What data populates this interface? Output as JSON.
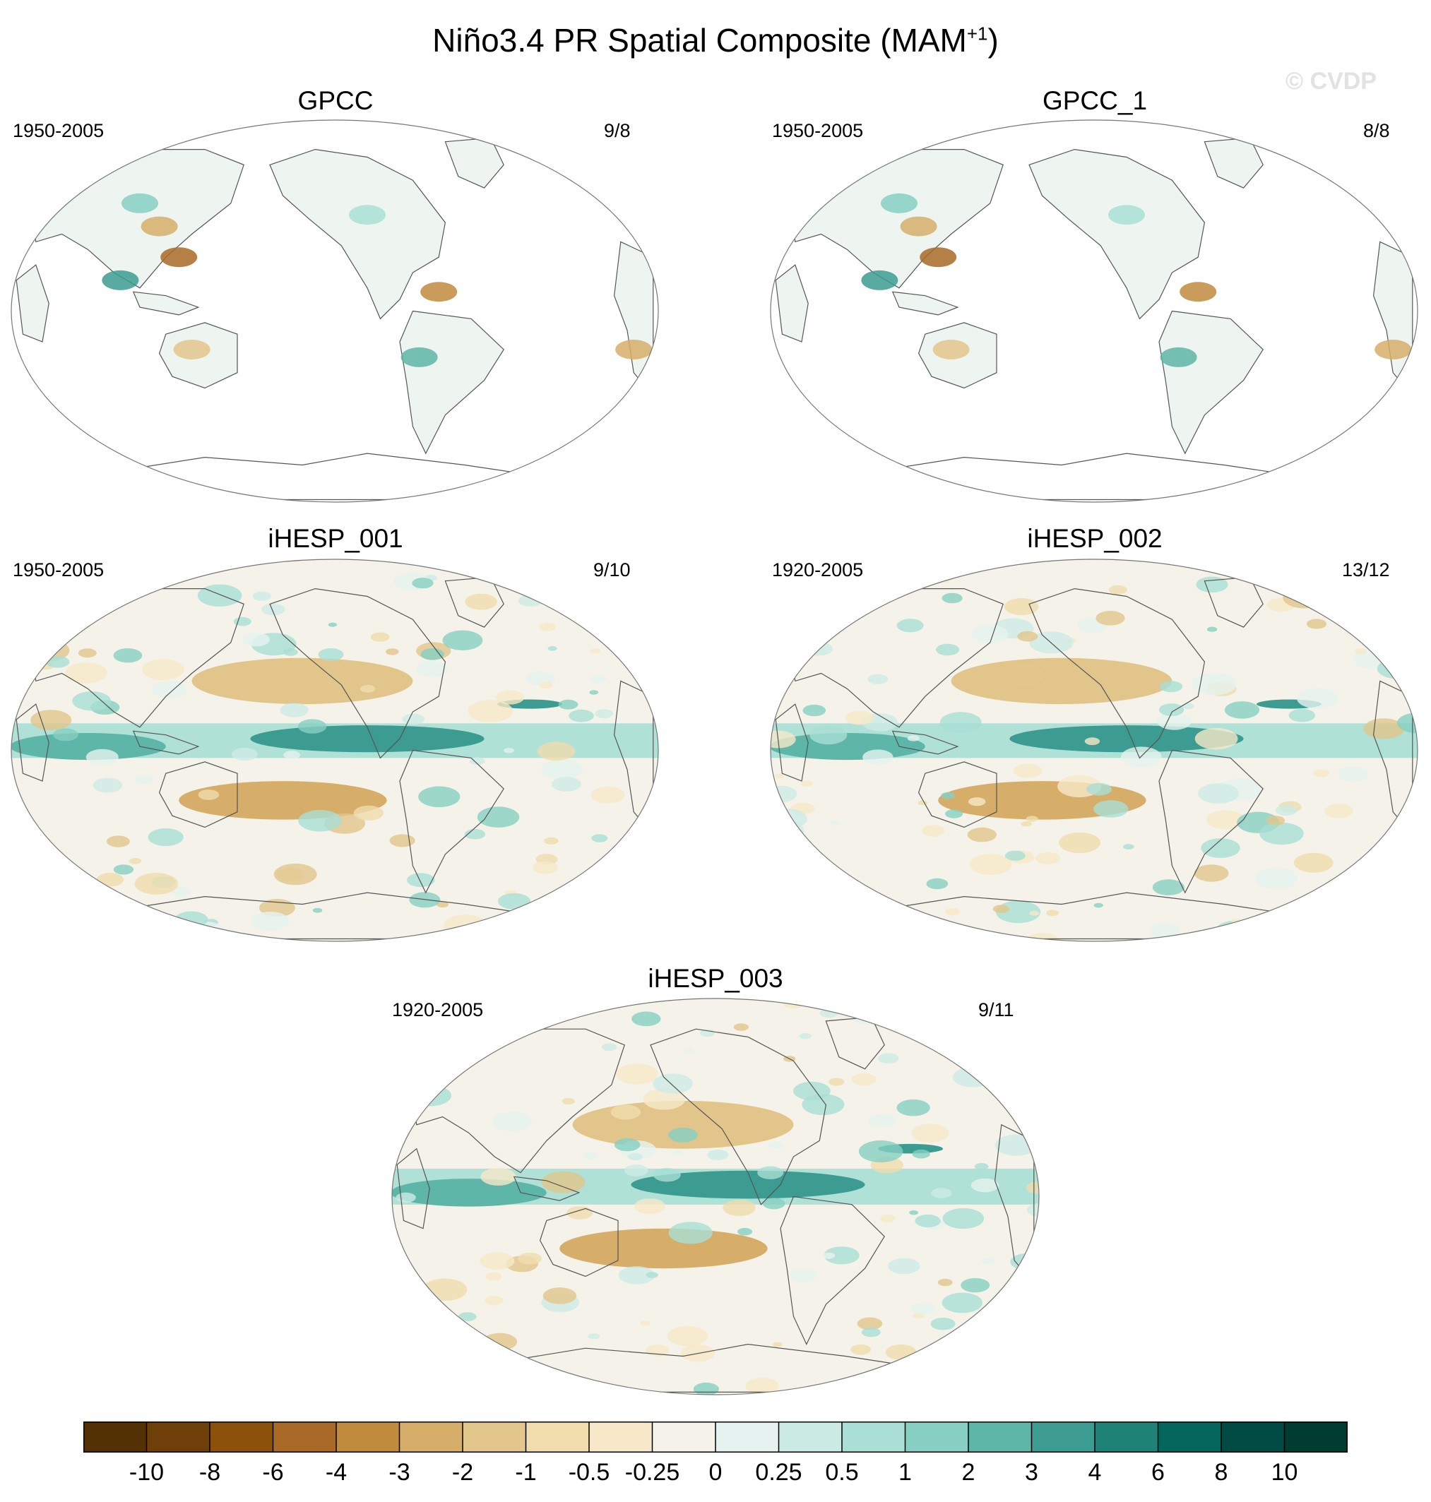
{
  "title": {
    "main": "Niño3.4 PR Spatial Composite (MAM",
    "superscript": "+1",
    "closing": ")"
  },
  "watermark": "© CVDP",
  "panels": [
    {
      "name": "GPCC",
      "years": "1950-2005",
      "counts": "9/8",
      "type": "observations"
    },
    {
      "name": "GPCC_1",
      "years": "1950-2005",
      "counts": "8/8",
      "type": "observations"
    },
    {
      "name": "iHESP_001",
      "years": "1950-2005",
      "counts": "9/10",
      "type": "model"
    },
    {
      "name": "iHESP_002",
      "years": "1920-2005",
      "counts": "13/12",
      "type": "model"
    },
    {
      "name": "iHESP_003",
      "years": "1920-2005",
      "counts": "9/11",
      "type": "model"
    }
  ],
  "colorbar": {
    "labels": [
      "-10",
      "-8",
      "-6",
      "-4",
      "-3",
      "-2",
      "-1",
      "-0.5",
      "-0.25",
      "0",
      "0.25",
      "0.5",
      "1",
      "2",
      "3",
      "4",
      "6",
      "8",
      "10"
    ],
    "colors": [
      "#543005",
      "#6f3f0a",
      "#8c510a",
      "#a86a26",
      "#c18b3e",
      "#d6ae6a",
      "#e2c58b",
      "#f0dcac",
      "#f6e8c8",
      "#f5f2ea",
      "#e6f2ef",
      "#cdebe5",
      "#a9dfd5",
      "#86cfc2",
      "#5db6a8",
      "#3c9c91",
      "#1f8277",
      "#04665d",
      "#014b44",
      "#003c30"
    ]
  },
  "map_colors": {
    "ocean_white": "#ffffff",
    "ocean_neutral": "#f5f2ea",
    "coast": "#555555",
    "wet": "#3c9c91",
    "dry": "#a86a26"
  }
}
